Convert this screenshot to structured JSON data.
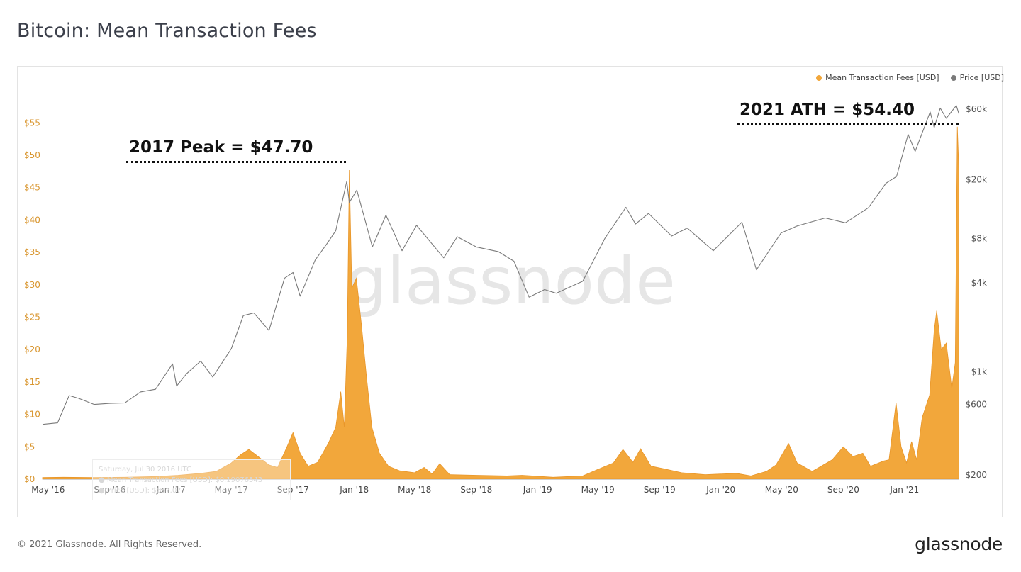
{
  "page": {
    "title": "Bitcoin: Mean Transaction Fees",
    "copyright": "© 2021 Glassnode. All Rights Reserved.",
    "logo": "glassnode",
    "watermark": "glassnode"
  },
  "legend": {
    "fees_label": "Mean Transaction Fees [USD]",
    "price_label": "Price [USD]"
  },
  "annotations": {
    "peak_2017": "2017 Peak = $47.70",
    "ath_2021": "2021 ATH = $54.40"
  },
  "tooltip_ghost": {
    "date": "Saturday, Jul 30 2016 UTC",
    "fees": "● Mean Transaction Fees [USD]: $0.19076543",
    "price": "● Price [USD]: $657.07"
  },
  "colors": {
    "fees": "#f2a73b",
    "price": "#7a7a7a",
    "axis_left": "#d9962f",
    "axis_right": "#555555",
    "watermark": "#e6e6e6"
  },
  "chart_data": {
    "type": "area",
    "x_tick_labels": [
      "May '16",
      "Sep '16",
      "Jan '17",
      "May '17",
      "Sep '17",
      "Jan '18",
      "May '18",
      "Sep '18",
      "Jan '19",
      "May '19",
      "Sep '19",
      "Jan '20",
      "May '20",
      "Sep '20",
      "Jan '21"
    ],
    "x_range": [
      "2016-04-20",
      "2021-04-20"
    ],
    "y_left": {
      "label": "Mean Transaction Fees [USD]",
      "ticks": [
        0,
        5,
        10,
        15,
        20,
        25,
        30,
        35,
        40,
        45,
        50,
        55
      ],
      "tick_labels": [
        "$0",
        "$5",
        "$10",
        "$15",
        "$20",
        "$25",
        "$30",
        "$35",
        "$40",
        "$45",
        "$50",
        "$55"
      ],
      "range": [
        0,
        57
      ]
    },
    "y_right": {
      "label": "Price [USD]",
      "scale": "log",
      "ticks": [
        200,
        600,
        1000,
        4000,
        8000,
        20000,
        60000
      ],
      "tick_labels": [
        "$200",
        "$600",
        "$1k",
        "$4k",
        "$8k",
        "$20k",
        "$60k"
      ],
      "range": [
        200,
        60000
      ]
    },
    "series": [
      {
        "name": "Mean Transaction Fees [USD]",
        "type": "area",
        "color": "#f2a73b",
        "points": [
          [
            "2016-04-20",
            0.25
          ],
          [
            "2016-06-01",
            0.3
          ],
          [
            "2016-08-01",
            0.25
          ],
          [
            "2016-10-01",
            0.3
          ],
          [
            "2016-12-01",
            0.4
          ],
          [
            "2017-01-15",
            0.6
          ],
          [
            "2017-03-01",
            0.9
          ],
          [
            "2017-04-01",
            1.2
          ],
          [
            "2017-05-01",
            2.5
          ],
          [
            "2017-05-20",
            3.8
          ],
          [
            "2017-06-05",
            4.6
          ],
          [
            "2017-06-25",
            3.4
          ],
          [
            "2017-07-15",
            2.2
          ],
          [
            "2017-08-01",
            1.8
          ],
          [
            "2017-08-20",
            5.0
          ],
          [
            "2017-09-01",
            7.2
          ],
          [
            "2017-09-15",
            4.0
          ],
          [
            "2017-10-01",
            2.0
          ],
          [
            "2017-10-20",
            2.6
          ],
          [
            "2017-11-10",
            5.5
          ],
          [
            "2017-11-25",
            8.0
          ],
          [
            "2017-12-05",
            13.5
          ],
          [
            "2017-12-12",
            8.0
          ],
          [
            "2017-12-18",
            22.0
          ],
          [
            "2017-12-22",
            47.7
          ],
          [
            "2017-12-27",
            29.5
          ],
          [
            "2018-01-05",
            31.0
          ],
          [
            "2018-01-15",
            24.0
          ],
          [
            "2018-01-25",
            16.0
          ],
          [
            "2018-02-05",
            8.0
          ],
          [
            "2018-02-20",
            4.0
          ],
          [
            "2018-03-10",
            2.0
          ],
          [
            "2018-04-01",
            1.3
          ],
          [
            "2018-05-01",
            1.0
          ],
          [
            "2018-05-20",
            1.8
          ],
          [
            "2018-06-05",
            0.8
          ],
          [
            "2018-06-20",
            2.4
          ],
          [
            "2018-07-10",
            0.7
          ],
          [
            "2018-09-01",
            0.6
          ],
          [
            "2018-11-01",
            0.5
          ],
          [
            "2018-12-01",
            0.6
          ],
          [
            "2019-02-01",
            0.3
          ],
          [
            "2019-04-01",
            0.5
          ],
          [
            "2019-05-01",
            1.5
          ],
          [
            "2019-06-01",
            2.5
          ],
          [
            "2019-06-20",
            4.6
          ],
          [
            "2019-07-10",
            2.6
          ],
          [
            "2019-07-25",
            4.7
          ],
          [
            "2019-08-15",
            2.0
          ],
          [
            "2019-09-10",
            1.6
          ],
          [
            "2019-10-15",
            1.0
          ],
          [
            "2019-12-01",
            0.7
          ],
          [
            "2020-02-01",
            0.9
          ],
          [
            "2020-03-01",
            0.5
          ],
          [
            "2020-04-01",
            1.2
          ],
          [
            "2020-04-20",
            2.2
          ],
          [
            "2020-05-15",
            5.5
          ],
          [
            "2020-06-01",
            2.5
          ],
          [
            "2020-07-01",
            1.2
          ],
          [
            "2020-08-10",
            3.0
          ],
          [
            "2020-09-01",
            5.0
          ],
          [
            "2020-09-20",
            3.5
          ],
          [
            "2020-10-10",
            4.0
          ],
          [
            "2020-10-25",
            2.0
          ],
          [
            "2020-11-20",
            2.8
          ],
          [
            "2020-12-01",
            3.0
          ],
          [
            "2020-12-15",
            11.8
          ],
          [
            "2020-12-25",
            5.0
          ],
          [
            "2021-01-05",
            2.5
          ],
          [
            "2021-01-15",
            5.8
          ],
          [
            "2021-01-25",
            3.0
          ],
          [
            "2021-02-05",
            9.5
          ],
          [
            "2021-02-20",
            13.0
          ],
          [
            "2021-03-01",
            23.0
          ],
          [
            "2021-03-06",
            26.0
          ],
          [
            "2021-03-15",
            20.0
          ],
          [
            "2021-03-25",
            21.0
          ],
          [
            "2021-04-05",
            14.0
          ],
          [
            "2021-04-12",
            18.0
          ],
          [
            "2021-04-16",
            54.4
          ],
          [
            "2021-04-19",
            48.0
          ]
        ]
      },
      {
        "name": "Price [USD]",
        "type": "line",
        "color": "#7a7a7a",
        "points": [
          [
            "2016-04-20",
            440
          ],
          [
            "2016-05-20",
            450
          ],
          [
            "2016-06-12",
            690
          ],
          [
            "2016-07-01",
            660
          ],
          [
            "2016-08-01",
            600
          ],
          [
            "2016-09-01",
            610
          ],
          [
            "2016-10-01",
            615
          ],
          [
            "2016-11-01",
            730
          ],
          [
            "2016-12-01",
            760
          ],
          [
            "2017-01-04",
            1130
          ],
          [
            "2017-01-12",
            800
          ],
          [
            "2017-02-01",
            970
          ],
          [
            "2017-03-01",
            1180
          ],
          [
            "2017-03-25",
            920
          ],
          [
            "2017-05-01",
            1430
          ],
          [
            "2017-05-25",
            2400
          ],
          [
            "2017-06-15",
            2500
          ],
          [
            "2017-07-15",
            1900
          ],
          [
            "2017-08-15",
            4300
          ],
          [
            "2017-09-01",
            4700
          ],
          [
            "2017-09-15",
            3250
          ],
          [
            "2017-10-15",
            5700
          ],
          [
            "2017-11-08",
            7400
          ],
          [
            "2017-11-25",
            9000
          ],
          [
            "2017-12-17",
            19500
          ],
          [
            "2017-12-22",
            14000
          ],
          [
            "2018-01-06",
            17000
          ],
          [
            "2018-02-06",
            7000
          ],
          [
            "2018-03-05",
            11500
          ],
          [
            "2018-04-06",
            6600
          ],
          [
            "2018-05-05",
            9800
          ],
          [
            "2018-06-28",
            5900
          ],
          [
            "2018-07-25",
            8200
          ],
          [
            "2018-09-01",
            7000
          ],
          [
            "2018-10-15",
            6500
          ],
          [
            "2018-11-15",
            5600
          ],
          [
            "2018-12-15",
            3200
          ],
          [
            "2019-01-15",
            3600
          ],
          [
            "2019-02-07",
            3400
          ],
          [
            "2019-04-01",
            4100
          ],
          [
            "2019-05-15",
            8000
          ],
          [
            "2019-06-26",
            13000
          ],
          [
            "2019-07-15",
            10000
          ],
          [
            "2019-08-10",
            11800
          ],
          [
            "2019-09-25",
            8300
          ],
          [
            "2019-10-26",
            9400
          ],
          [
            "2019-12-17",
            6600
          ],
          [
            "2020-02-12",
            10300
          ],
          [
            "2020-03-12",
            4900
          ],
          [
            "2020-04-30",
            8700
          ],
          [
            "2020-06-01",
            9700
          ],
          [
            "2020-07-27",
            11000
          ],
          [
            "2020-09-05",
            10200
          ],
          [
            "2020-10-21",
            12900
          ],
          [
            "2020-11-25",
            18900
          ],
          [
            "2020-12-16",
            21000
          ],
          [
            "2021-01-08",
            40500
          ],
          [
            "2021-01-22",
            31000
          ],
          [
            "2021-02-21",
            57500
          ],
          [
            "2021-03-01",
            45000
          ],
          [
            "2021-03-13",
            61000
          ],
          [
            "2021-03-25",
            52000
          ],
          [
            "2021-04-14",
            63500
          ],
          [
            "2021-04-19",
            56000
          ]
        ]
      }
    ],
    "grid": false,
    "legend_position": "top-right"
  }
}
